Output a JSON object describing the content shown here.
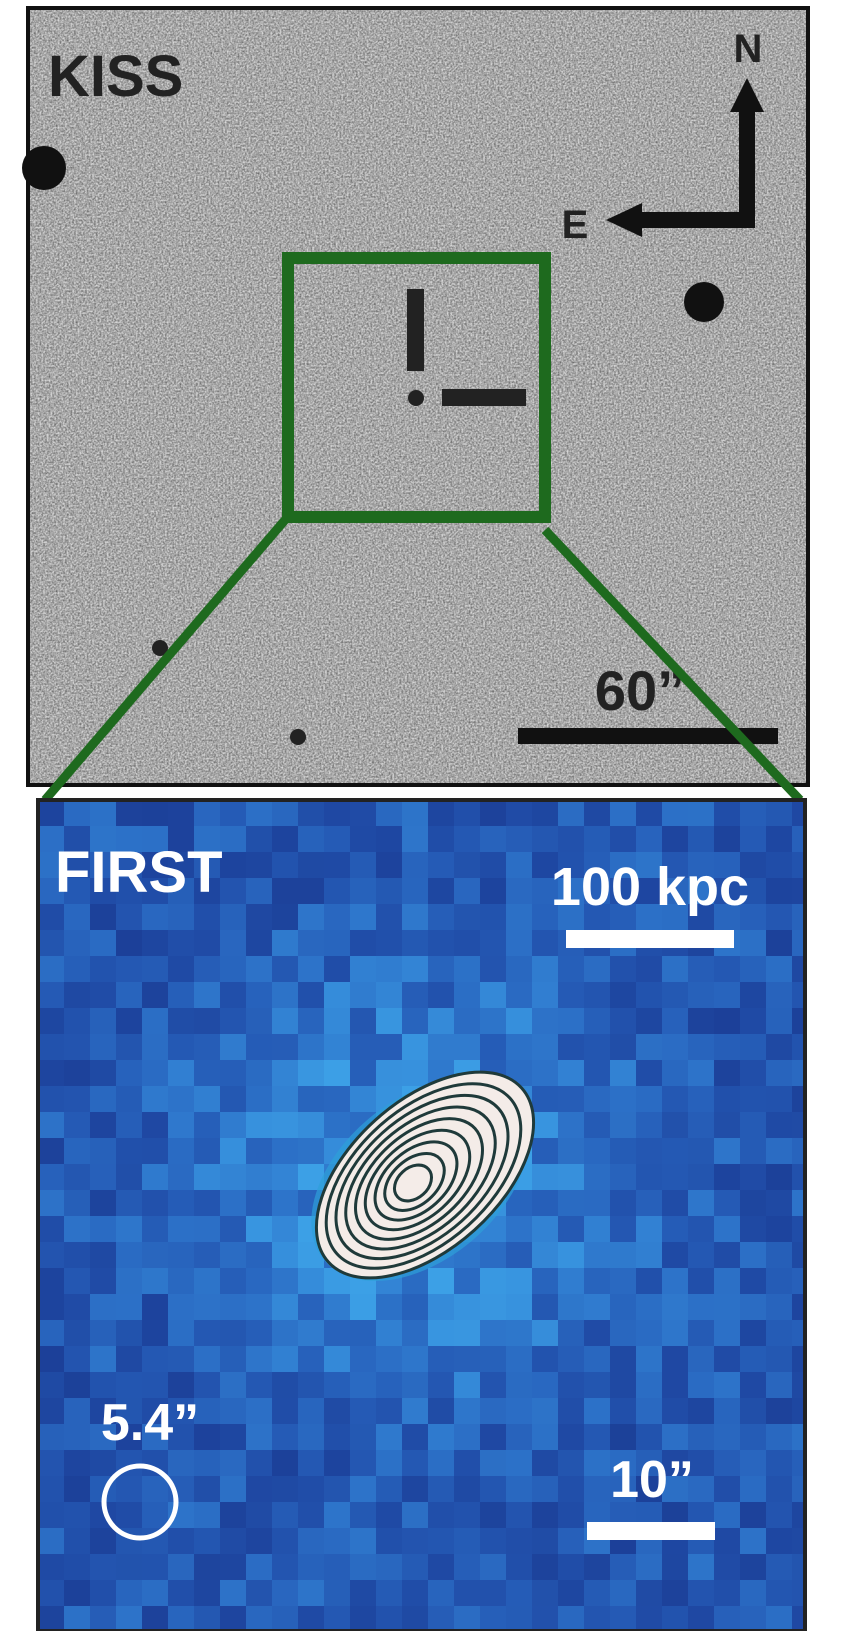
{
  "top_panel": {
    "label": "KISS",
    "compass_north": "N",
    "compass_east": "E",
    "scale_bar": "60”"
  },
  "bottom_panel": {
    "label": "FIRST",
    "scale_physical": "100 kpc",
    "beam_size": "5.4”",
    "scale_angular": "10”"
  }
}
